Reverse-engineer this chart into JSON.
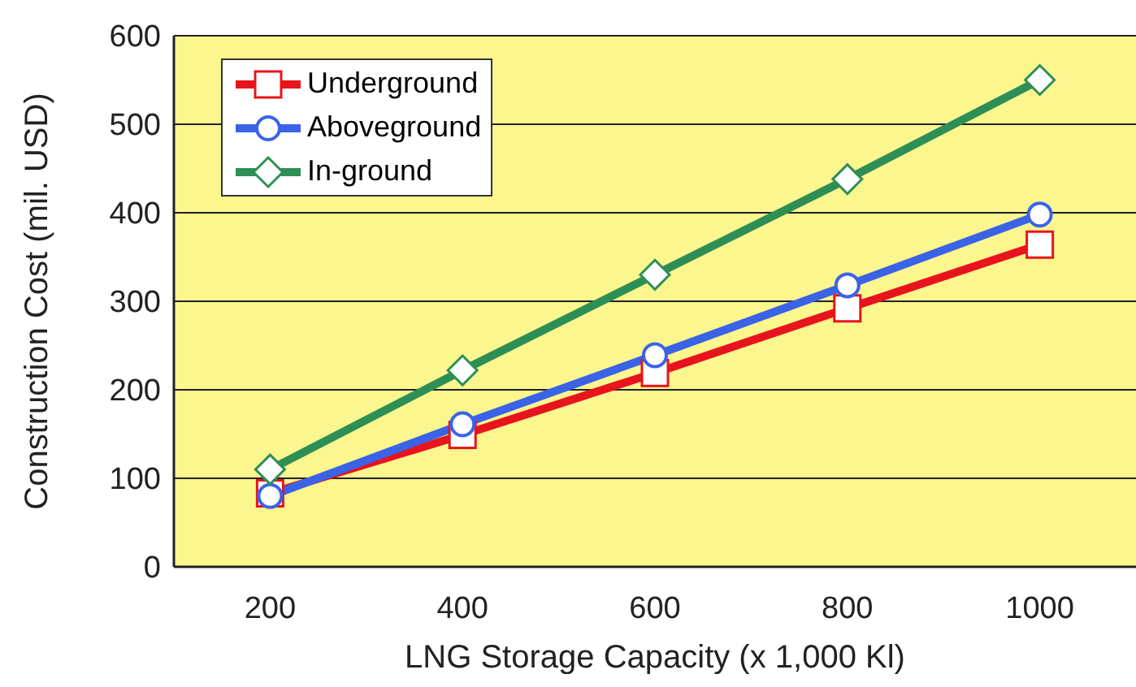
{
  "chart_data": {
    "type": "line",
    "xlabel": "LNG Storage Capacity (x 1,000  Kl)",
    "ylabel": "Construction Cost (mil. USD)",
    "categories": [
      "200",
      "400",
      "600",
      "800",
      "1000"
    ],
    "series": [
      {
        "name": "Underground",
        "color": "#e8141c",
        "marker": "square",
        "values": [
          83,
          149,
          219,
          292,
          364
        ]
      },
      {
        "name": "Aboveground",
        "color": "#3a63e8",
        "marker": "circle",
        "values": [
          80,
          161,
          239,
          318,
          398
        ]
      },
      {
        "name": "In-ground",
        "color": "#2e8f55",
        "marker": "diamond",
        "values": [
          110,
          222,
          330,
          438,
          550
        ]
      }
    ],
    "ylim": [
      0,
      600
    ],
    "yticks": [
      0,
      100,
      200,
      300,
      400,
      500,
      600
    ],
    "grid": "y",
    "legend": "top left"
  }
}
